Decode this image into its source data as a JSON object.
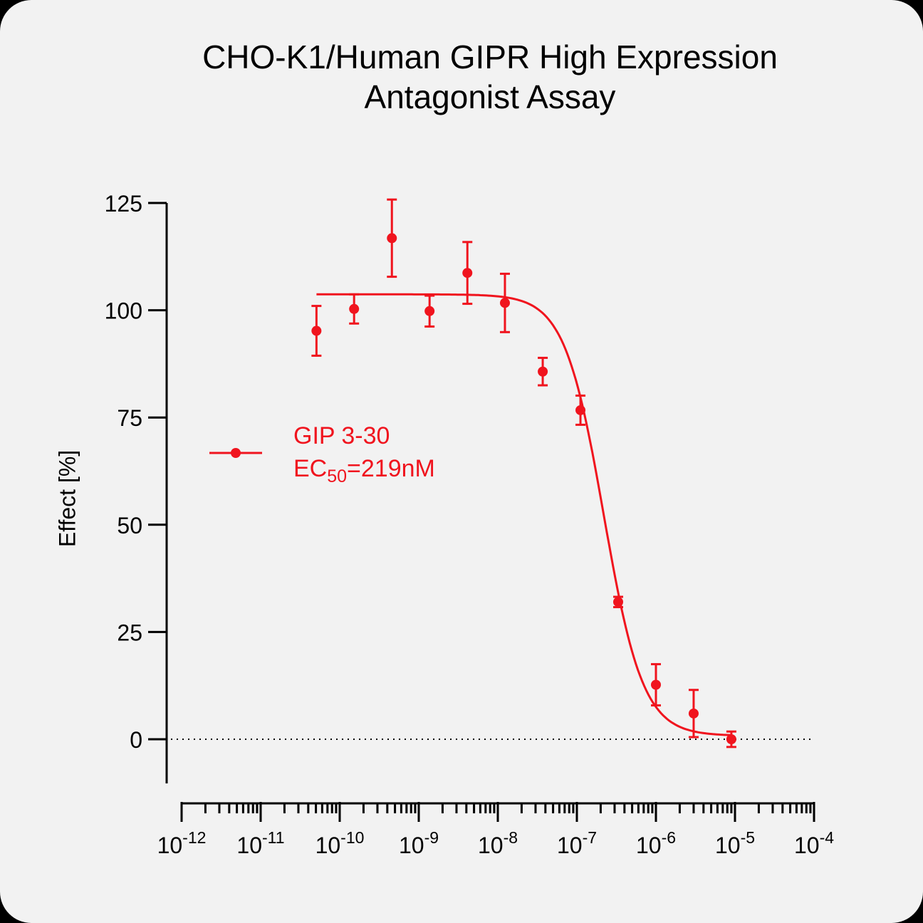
{
  "chart_data": {
    "type": "scatter",
    "title": "CHO-K1/Human GIPR High Expression",
    "subtitle": "Antagonist Assay",
    "ylabel": "Effect [%]",
    "xlabel": "",
    "x_scale": "log",
    "xlim": [
      1e-12,
      0.0001
    ],
    "ylim": [
      -10,
      125
    ],
    "y_ticks": [
      0,
      25,
      50,
      75,
      100,
      125
    ],
    "y_tick_labels": [
      "0",
      "25",
      "50",
      "75",
      "100",
      "125"
    ],
    "x_ticks": [
      {
        "value": 1e-12,
        "base": "10",
        "exp": "-12"
      },
      {
        "value": 1e-11,
        "base": "10",
        "exp": "-11"
      },
      {
        "value": 1e-10,
        "base": "10",
        "exp": "-10"
      },
      {
        "value": 1e-09,
        "base": "10",
        "exp": "-9"
      },
      {
        "value": 1e-08,
        "base": "10",
        "exp": "-8"
      },
      {
        "value": 1e-07,
        "base": "10",
        "exp": "-7"
      },
      {
        "value": 1e-06,
        "base": "10",
        "exp": "-6"
      },
      {
        "value": 1e-05,
        "base": "10",
        "exp": "-5"
      },
      {
        "value": 0.0001,
        "base": "10",
        "exp": "-4"
      }
    ],
    "baseline": 0,
    "series": [
      {
        "name": "GIP 3-30",
        "color": "#f0141e",
        "points": [
          {
            "x": 5.08e-11,
            "y": 95.2,
            "err": 5.8
          },
          {
            "x": 1.52e-10,
            "y": 100.3,
            "err": 3.4
          },
          {
            "x": 4.57e-10,
            "y": 116.8,
            "err": 9.0
          },
          {
            "x": 1.37e-09,
            "y": 99.8,
            "err": 3.6
          },
          {
            "x": 4.12e-09,
            "y": 108.7,
            "err": 7.2
          },
          {
            "x": 1.23e-08,
            "y": 101.7,
            "err": 6.8
          },
          {
            "x": 3.7e-08,
            "y": 85.7,
            "err": 3.2
          },
          {
            "x": 1.11e-07,
            "y": 76.7,
            "err": 3.4
          },
          {
            "x": 3.33e-07,
            "y": 32.0,
            "err": 1.2
          },
          {
            "x": 1e-06,
            "y": 12.7,
            "err": 4.8
          },
          {
            "x": 3e-06,
            "y": 6.0,
            "err": 5.5
          },
          {
            "x": 9e-06,
            "y": 0.0,
            "err": 1.8
          }
        ],
        "fit": {
          "model": "4PL",
          "top": 103.7,
          "bottom": 0.8,
          "ec50": 2.19e-07,
          "hill": 1.75
        }
      }
    ],
    "legend": {
      "placement": "middle-left",
      "entries": [
        {
          "label": "GIP 3-30",
          "ec_prefix": "EC",
          "ec_sub": "50",
          "ec_value": "=219nM"
        }
      ]
    }
  }
}
